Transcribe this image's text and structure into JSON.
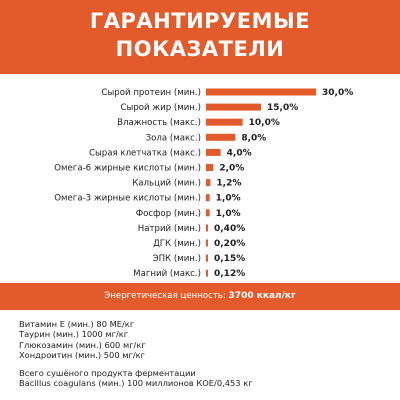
{
  "header": {
    "title_line1": "ГАРАНТИРУЕМЫЕ",
    "title_line2": "ПОКАЗАТЕЛИ"
  },
  "colors": {
    "accent": "#e35a2b",
    "text": "#222222"
  },
  "chart_data": {
    "type": "bar",
    "orientation": "horizontal",
    "categories": [
      "Сырой протеин (мин.)",
      "Сырой жир (мин.)",
      "Влажность (макс.)",
      "Зола (макс.)",
      "Сырая клетчатка (макс.)",
      "Омега-6 жирные кислоты (мин.)",
      "Кальций (мин.)",
      "Омега-3 жирные кислоты (мин.)",
      "Фосфор (мин.)",
      "Натрий (мин.)",
      "ДГК (мин.)",
      "ЭПК (мин.)",
      "Магний (макс.)"
    ],
    "values": [
      30.0,
      15.0,
      10.0,
      8.0,
      4.0,
      2.0,
      1.2,
      1.0,
      1.0,
      0.4,
      0.2,
      0.15,
      0.12
    ],
    "value_labels": [
      "30,0%",
      "15,0%",
      "10,0%",
      "8,0%",
      "4,0%",
      "2,0%",
      "1,2%",
      "1,0%",
      "1,0%",
      "0,40%",
      "0,20%",
      "0,15%",
      "0,12%"
    ],
    "xlim": [
      0,
      30
    ],
    "grid": false,
    "bar_color": "#e35a2b"
  },
  "energy": {
    "label": "Энергетическая ценность:",
    "value": "3700 ккал/кг"
  },
  "extras": {
    "lines": [
      "Витамин Е (мин.) 80 МЕ/кг",
      "Таурин (мин.) 1000 мг/кг",
      "Глюкозамин (мин.) 600 мг/кг",
      "Хондроитин (мин.) 500 мг/кг"
    ],
    "ferment_lines": [
      "Всего сушёного продукта ферментации",
      "Bacillus coagulans (мин.) 100 миллионов КОЕ/0,453 кг"
    ]
  }
}
